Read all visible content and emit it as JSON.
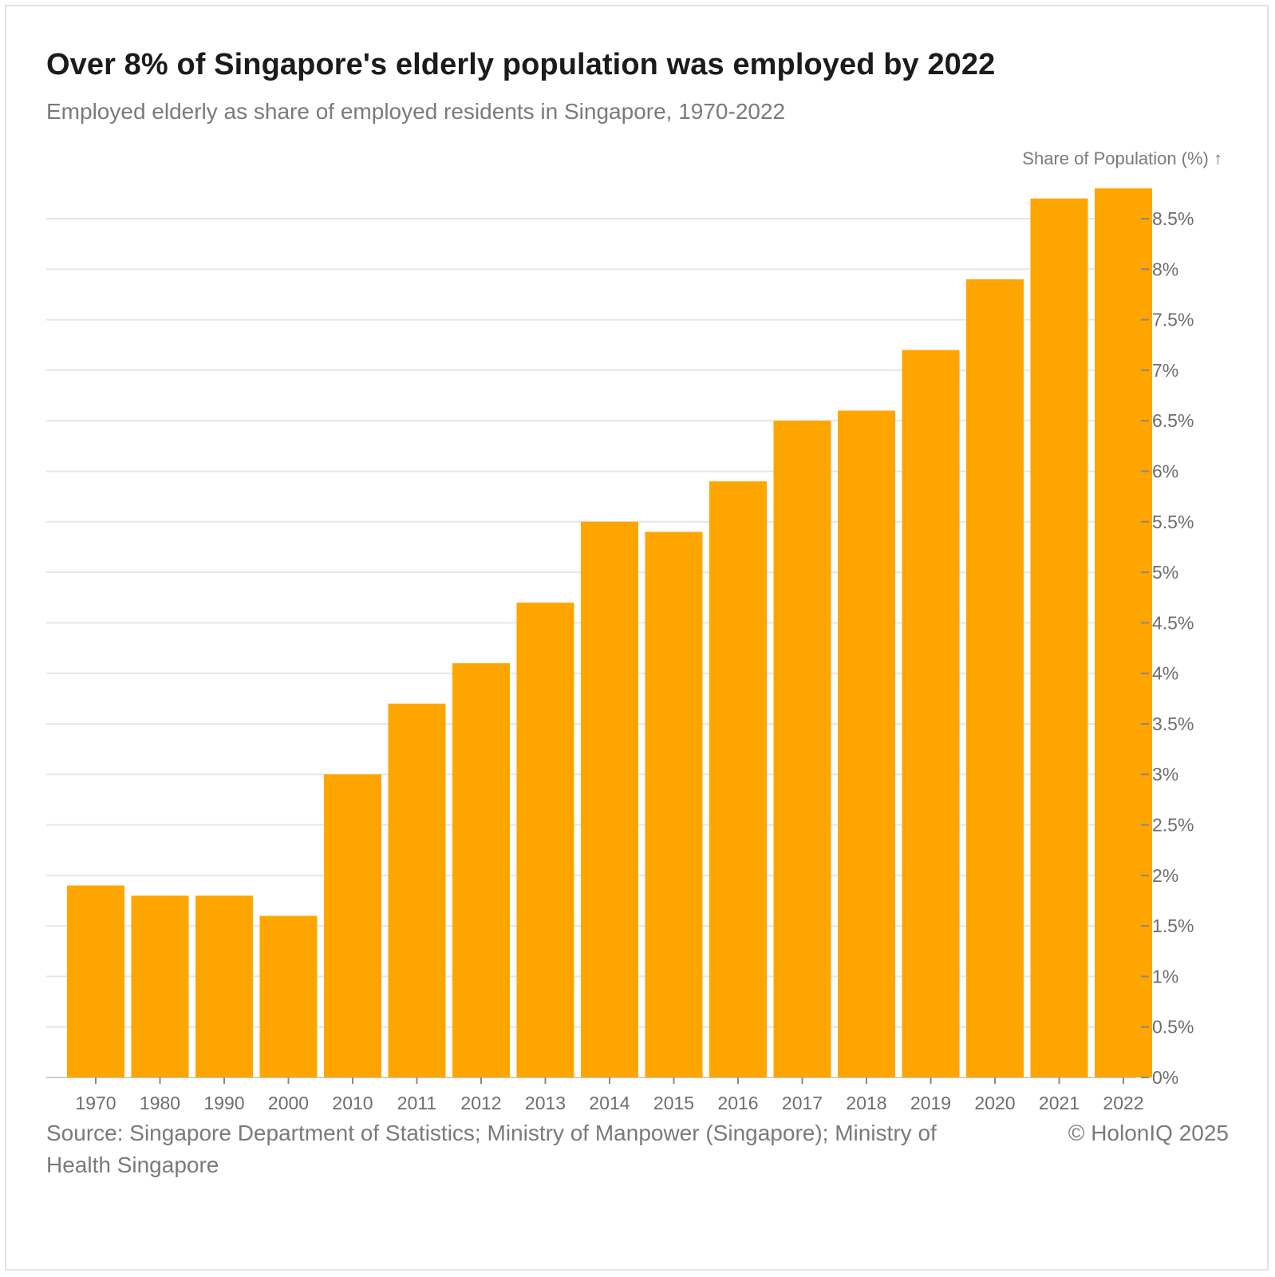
{
  "title": "Over 8% of Singapore's elderly population was employed by 2022",
  "subtitle": "Employed elderly as share of employed residents in Singapore, 1970-2022",
  "source": "Source: Singapore Department of Statistics; Ministry of Manpower (Singapore); Ministry of Health Singapore",
  "copyright": "© HolonIQ 2025",
  "colors": {
    "bar": "#FFA500",
    "grid": "#e6e6e6",
    "axis": "#cccccc"
  },
  "chart_data": {
    "type": "bar",
    "title": "Over 8% of Singapore's elderly population was employed by 2022",
    "subtitle": "Employed elderly as share of employed residents in Singapore, 1970-2022",
    "xlabel": "",
    "ylabel": "Share of Population (%) ↑",
    "categories": [
      "1970",
      "1980",
      "1990",
      "2000",
      "2010",
      "2011",
      "2012",
      "2013",
      "2014",
      "2015",
      "2016",
      "2017",
      "2018",
      "2019",
      "2020",
      "2021",
      "2022"
    ],
    "values": [
      1.9,
      1.8,
      1.8,
      1.6,
      3.0,
      3.7,
      4.1,
      4.7,
      5.5,
      5.4,
      5.9,
      6.5,
      6.6,
      7.2,
      7.9,
      8.7,
      8.8
    ],
    "ylim": [
      0,
      8.5
    ],
    "yticks": [
      "0%",
      "0.5%",
      "1%",
      "1.5%",
      "2%",
      "2.5%",
      "3%",
      "3.5%",
      "4%",
      "4.5%",
      "5%",
      "5.5%",
      "6%",
      "6.5%",
      "7%",
      "7.5%",
      "8%",
      "8.5%"
    ],
    "grid": true,
    "y_axis_side": "right"
  }
}
